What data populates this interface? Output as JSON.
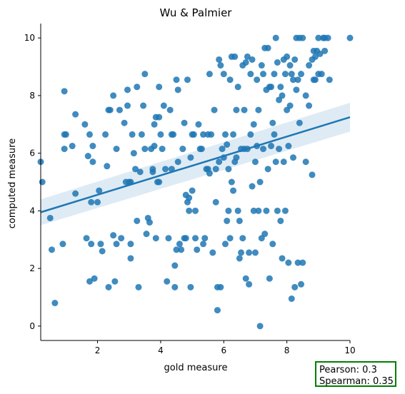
{
  "chart_data": {
    "type": "scatter",
    "title": "Wu & Palmier",
    "xlabel": "gold measure",
    "ylabel": "computed measure",
    "xlim": [
      0.2,
      10
    ],
    "ylim": [
      -0.5,
      10.5
    ],
    "xticks": [
      2,
      4,
      6,
      8,
      10
    ],
    "yticks": [
      0,
      2,
      4,
      6,
      8,
      10
    ],
    "grid": false,
    "point_color": "#1f77b4",
    "regression": {
      "x": [
        0.2,
        10
      ],
      "y": [
        3.95,
        7.25
      ],
      "ci_lower": [
        3.5,
        6.75
      ],
      "ci_upper": [
        4.4,
        7.75
      ]
    },
    "points": [
      [
        0.2,
        5.7
      ],
      [
        0.25,
        5.0
      ],
      [
        0.5,
        3.75
      ],
      [
        0.55,
        2.65
      ],
      [
        0.65,
        0.8
      ],
      [
        0.9,
        2.85
      ],
      [
        0.95,
        6.65
      ],
      [
        0.95,
        6.15
      ],
      [
        0.95,
        8.15
      ],
      [
        1.0,
        6.65
      ],
      [
        1.2,
        6.25
      ],
      [
        1.3,
        4.6
      ],
      [
        1.3,
        7.35
      ],
      [
        1.6,
        7.0
      ],
      [
        1.65,
        3.05
      ],
      [
        1.7,
        5.9
      ],
      [
        1.75,
        6.65
      ],
      [
        1.75,
        1.55
      ],
      [
        1.8,
        4.3
      ],
      [
        1.8,
        2.85
      ],
      [
        1.85,
        6.25
      ],
      [
        1.85,
        5.7
      ],
      [
        1.9,
        1.65
      ],
      [
        2.0,
        4.3
      ],
      [
        2.05,
        4.7
      ],
      [
        2.1,
        2.85
      ],
      [
        2.15,
        2.6
      ],
      [
        2.25,
        6.65
      ],
      [
        2.3,
        5.55
      ],
      [
        2.35,
        7.5
      ],
      [
        2.35,
        1.35
      ],
      [
        2.4,
        7.5
      ],
      [
        2.5,
        8.0
      ],
      [
        2.5,
        3.15
      ],
      [
        2.55,
        1.55
      ],
      [
        2.6,
        2.85
      ],
      [
        2.6,
        6.15
      ],
      [
        2.7,
        7.5
      ],
      [
        2.75,
        3.05
      ],
      [
        2.85,
        7.05
      ],
      [
        2.9,
        5.0
      ],
      [
        2.95,
        7.65
      ],
      [
        2.95,
        8.2
      ],
      [
        3.0,
        5.0
      ],
      [
        3.05,
        5.0
      ],
      [
        3.05,
        2.85
      ],
      [
        3.05,
        2.35
      ],
      [
        3.1,
        6.65
      ],
      [
        3.15,
        6.0
      ],
      [
        3.2,
        5.45
      ],
      [
        3.25,
        8.3
      ],
      [
        3.25,
        3.65
      ],
      [
        3.3,
        1.35
      ],
      [
        3.35,
        5.35
      ],
      [
        3.4,
        6.65
      ],
      [
        3.45,
        7.65
      ],
      [
        3.5,
        8.75
      ],
      [
        3.5,
        6.15
      ],
      [
        3.55,
        3.2
      ],
      [
        3.6,
        3.75
      ],
      [
        3.65,
        3.6
      ],
      [
        3.7,
        6.15
      ],
      [
        3.75,
        5.45
      ],
      [
        3.75,
        5.35
      ],
      [
        3.8,
        7.0
      ],
      [
        3.8,
        6.25
      ],
      [
        3.85,
        7.25
      ],
      [
        3.85,
        3.05
      ],
      [
        3.9,
        5.0
      ],
      [
        3.95,
        8.3
      ],
      [
        3.95,
        7.25
      ],
      [
        3.95,
        5.0
      ],
      [
        4.0,
        6.65
      ],
      [
        4.05,
        6.15
      ],
      [
        4.1,
        7.65
      ],
      [
        4.15,
        5.45
      ],
      [
        4.2,
        1.55
      ],
      [
        4.25,
        3.05
      ],
      [
        4.3,
        7.5
      ],
      [
        4.35,
        6.65
      ],
      [
        4.35,
        5.45
      ],
      [
        4.4,
        6.65
      ],
      [
        4.45,
        2.1
      ],
      [
        4.45,
        1.35
      ],
      [
        4.5,
        8.55
      ],
      [
        4.5,
        2.65
      ],
      [
        4.55,
        8.2
      ],
      [
        4.55,
        5.7
      ],
      [
        4.6,
        2.85
      ],
      [
        4.65,
        2.65
      ],
      [
        4.7,
        6.15
      ],
      [
        4.75,
        7.05
      ],
      [
        4.75,
        3.05
      ],
      [
        4.8,
        4.55
      ],
      [
        4.8,
        3.05
      ],
      [
        4.85,
        8.55
      ],
      [
        4.85,
        4.3
      ],
      [
        4.9,
        4.45
      ],
      [
        4.9,
        4.0
      ],
      [
        4.95,
        5.85
      ],
      [
        4.95,
        1.35
      ],
      [
        5.0,
        6.65
      ],
      [
        5.0,
        4.7
      ],
      [
        5.05,
        6.65
      ],
      [
        5.1,
        4.0
      ],
      [
        5.1,
        3.05
      ],
      [
        5.15,
        2.65
      ],
      [
        5.2,
        7.0
      ],
      [
        5.25,
        6.15
      ],
      [
        5.3,
        6.15
      ],
      [
        5.35,
        6.65
      ],
      [
        5.35,
        2.85
      ],
      [
        5.4,
        3.05
      ],
      [
        5.45,
        5.45
      ],
      [
        5.5,
        6.65
      ],
      [
        5.5,
        5.45
      ],
      [
        5.55,
        8.75
      ],
      [
        5.55,
        5.3
      ],
      [
        5.6,
        6.65
      ],
      [
        5.65,
        2.55
      ],
      [
        5.7,
        7.5
      ],
      [
        5.75,
        4.3
      ],
      [
        5.75,
        5.45
      ],
      [
        5.8,
        1.35
      ],
      [
        5.8,
        0.55
      ],
      [
        5.85,
        9.25
      ],
      [
        5.85,
        5.7
      ],
      [
        5.9,
        9.05
      ],
      [
        5.9,
        1.35
      ],
      [
        5.95,
        6.15
      ],
      [
        6.0,
        8.75
      ],
      [
        6.0,
        5.85
      ],
      [
        6.05,
        6.65
      ],
      [
        6.05,
        2.85
      ],
      [
        6.1,
        6.3
      ],
      [
        6.1,
        3.65
      ],
      [
        6.15,
        5.45
      ],
      [
        6.15,
        4.0
      ],
      [
        6.2,
        8.55
      ],
      [
        6.2,
        3.05
      ],
      [
        6.25,
        9.35
      ],
      [
        6.25,
        5.0
      ],
      [
        6.3,
        6.65
      ],
      [
        6.3,
        4.7
      ],
      [
        6.35,
        9.35
      ],
      [
        6.35,
        5.7
      ],
      [
        6.4,
        7.5
      ],
      [
        6.4,
        5.85
      ],
      [
        6.45,
        8.3
      ],
      [
        6.45,
        4.0
      ],
      [
        6.5,
        3.65
      ],
      [
        6.5,
        2.35
      ],
      [
        6.55,
        6.15
      ],
      [
        6.55,
        2.55
      ],
      [
        6.6,
        9.05
      ],
      [
        6.6,
        3.05
      ],
      [
        6.65,
        7.5
      ],
      [
        6.65,
        6.15
      ],
      [
        6.7,
        9.15
      ],
      [
        6.7,
        1.65
      ],
      [
        6.75,
        9.35
      ],
      [
        6.75,
        6.15
      ],
      [
        6.8,
        1.45
      ],
      [
        6.8,
        2.55
      ],
      [
        6.85,
        8.75
      ],
      [
        6.85,
        6.65
      ],
      [
        6.9,
        9.25
      ],
      [
        6.9,
        4.85
      ],
      [
        6.95,
        7.0
      ],
      [
        6.95,
        4.0
      ],
      [
        7.0,
        5.7
      ],
      [
        7.0,
        2.55
      ],
      [
        7.05,
        8.55
      ],
      [
        7.05,
        6.25
      ],
      [
        7.1,
        7.5
      ],
      [
        7.1,
        4.0
      ],
      [
        7.15,
        0.0
      ],
      [
        7.15,
        5.0
      ],
      [
        7.2,
        9.05
      ],
      [
        7.2,
        3.05
      ],
      [
        7.25,
        8.75
      ],
      [
        7.25,
        6.15
      ],
      [
        7.3,
        9.65
      ],
      [
        7.3,
        3.2
      ],
      [
        7.35,
        8.2
      ],
      [
        7.35,
        4.0
      ],
      [
        7.4,
        9.65
      ],
      [
        7.4,
        5.45
      ],
      [
        7.45,
        8.3
      ],
      [
        7.45,
        1.65
      ],
      [
        7.5,
        8.3
      ],
      [
        7.5,
        6.25
      ],
      [
        7.55,
        7.05
      ],
      [
        7.55,
        2.85
      ],
      [
        7.6,
        8.75
      ],
      [
        7.6,
        6.65
      ],
      [
        7.65,
        10.0
      ],
      [
        7.65,
        5.7
      ],
      [
        7.7,
        9.15
      ],
      [
        7.7,
        4.0
      ],
      [
        7.75,
        7.85
      ],
      [
        7.75,
        6.15
      ],
      [
        7.8,
        8.3
      ],
      [
        7.8,
        3.65
      ],
      [
        7.85,
        8.0
      ],
      [
        7.85,
        2.35
      ],
      [
        7.9,
        9.25
      ],
      [
        7.9,
        5.7
      ],
      [
        7.95,
        8.75
      ],
      [
        7.95,
        4.0
      ],
      [
        8.0,
        9.35
      ],
      [
        8.0,
        7.5
      ],
      [
        8.05,
        6.25
      ],
      [
        8.05,
        2.2
      ],
      [
        8.1,
        9.05
      ],
      [
        8.1,
        7.65
      ],
      [
        8.15,
        8.75
      ],
      [
        8.15,
        0.95
      ],
      [
        8.2,
        8.55
      ],
      [
        8.2,
        5.85
      ],
      [
        8.25,
        9.25
      ],
      [
        8.25,
        1.35
      ],
      [
        8.3,
        10.0
      ],
      [
        8.3,
        8.2
      ],
      [
        8.35,
        8.55
      ],
      [
        8.35,
        2.2
      ],
      [
        8.4,
        10.0
      ],
      [
        8.4,
        7.05
      ],
      [
        8.45,
        8.75
      ],
      [
        8.45,
        1.45
      ],
      [
        8.5,
        10.0
      ],
      [
        8.5,
        2.2
      ],
      [
        8.6,
        8.0
      ],
      [
        8.6,
        5.7
      ],
      [
        8.7,
        9.05
      ],
      [
        8.7,
        7.65
      ],
      [
        8.8,
        9.25
      ],
      [
        8.8,
        5.25
      ],
      [
        8.85,
        9.55
      ],
      [
        8.85,
        8.55
      ],
      [
        8.9,
        9.35
      ],
      [
        8.9,
        8.55
      ],
      [
        8.95,
        9.55
      ],
      [
        9.0,
        10.0
      ],
      [
        9.0,
        8.75
      ],
      [
        9.05,
        9.45
      ],
      [
        9.1,
        8.75
      ],
      [
        9.15,
        10.0
      ],
      [
        9.2,
        9.55
      ],
      [
        9.2,
        10.0
      ],
      [
        9.3,
        10.0
      ],
      [
        9.35,
        8.55
      ],
      [
        10.0,
        10.0
      ]
    ]
  },
  "stats": {
    "pearson": "Pearson: 0.3",
    "spearman": "Spearman: 0.35"
  }
}
